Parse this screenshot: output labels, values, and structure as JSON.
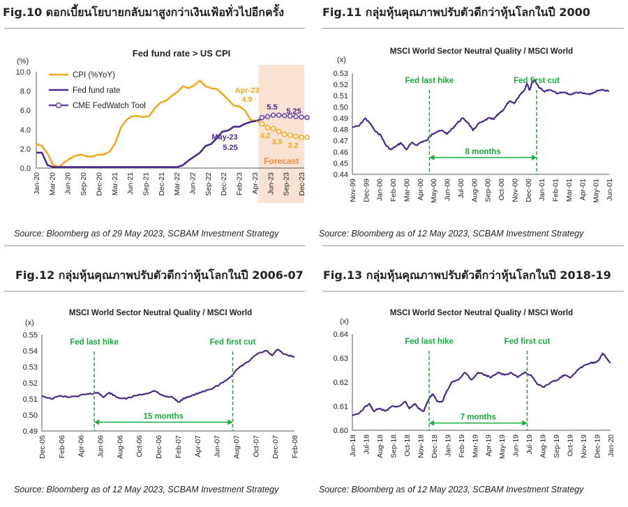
{
  "panels": [
    {
      "title": "Fig.10 ดอกเบี้ยนโยบายกลับมาสูงกว่าเงินเฟ้อทั่วไปอีกครั้ง",
      "source": "Source: Bloomberg as of 29 May 2023, SCBAM Investment Strategy"
    },
    {
      "title": "Fig.11 กลุ่มหุ้นคุณภาพปรับตัวดีกว่าหุ้นโลกในปี 2000",
      "source": "Source: Bloomberg as of 12 May 2023, SCBAM Investment Strategy"
    },
    {
      "title": "Fig.12 กลุ่มหุ้นคุณภาพปรับตัวดีกว่าหุ้นโลกในปี 2006-07",
      "source": "Source: Bloomberg as of 12 May 2023, SCBAM Investment Strategy"
    },
    {
      "title": "Fig.13 กลุ่มหุ้นคุณภาพปรับตัวดีกว่าหุ้นโลกในปี 2018-19",
      "source": "Source: Bloomberg as of 12 May 2023, SCBAM Investment Strategy"
    }
  ],
  "colors": {
    "cpi": "#F2A81D",
    "fed": "#4B2A8A",
    "fedwatch": "#6A3FA8",
    "green": "#1AAA3C",
    "forecast_bg": "#FBE3D3",
    "forecast_text": "#F08A3A",
    "grid": "#d9d9d9",
    "axis": "#555555"
  },
  "chart_data": [
    {
      "type": "line",
      "title": "Fed fund rate > US CPI",
      "ylabel": "(%)",
      "ylim": [
        0,
        10
      ],
      "yticks": [
        "0.0",
        "2.0",
        "4.0",
        "6.0",
        "8.0",
        "10.0"
      ],
      "x_start": "2020-01",
      "x_end": "2023-12",
      "xtick_labels": [
        "Jan-20",
        "Mar-20",
        "Jun-20",
        "Sep-20",
        "Dec-20",
        "Mar-21",
        "Jun-21",
        "Sep-21",
        "Dec-21",
        "Mar-22",
        "Jun-22",
        "Sep-22",
        "Dec-22",
        "Feb-23",
        "Apr-23",
        "Jun-23",
        "Sep-23",
        "Dec-23"
      ],
      "forecast_label": "Forecast",
      "forecast_from": "2023-05",
      "legend": [
        "CPI (%YoY)",
        "Fed fund rate",
        "CME FedWatch Tool"
      ],
      "series": [
        {
          "name": "CPI (%YoY)",
          "start": "2020-01",
          "values": [
            2.5,
            2.3,
            1.5,
            0.3,
            0.1,
            0.6,
            1.0,
            1.3,
            1.4,
            1.2,
            1.2,
            1.4,
            1.4,
            1.7,
            2.6,
            4.2,
            5.0,
            5.4,
            5.4,
            5.3,
            5.4,
            6.2,
            6.8,
            7.0,
            7.5,
            7.9,
            8.5,
            8.3,
            8.6,
            9.1,
            8.5,
            8.3,
            8.2,
            7.7,
            7.1,
            6.5,
            6.4,
            6.0,
            5.0,
            4.9
          ]
        },
        {
          "name": "Fed fund rate",
          "start": "2020-01",
          "values": [
            1.6,
            1.6,
            0.3,
            0.1,
            0.1,
            0.1,
            0.1,
            0.1,
            0.1,
            0.1,
            0.1,
            0.1,
            0.1,
            0.1,
            0.1,
            0.1,
            0.1,
            0.1,
            0.1,
            0.1,
            0.1,
            0.1,
            0.1,
            0.1,
            0.1,
            0.1,
            0.3,
            0.8,
            1.2,
            1.6,
            2.3,
            2.5,
            3.1,
            3.8,
            3.9,
            4.3,
            4.3,
            4.6,
            4.8,
            4.9,
            5.1
          ]
        },
        {
          "name": "CPI forecast",
          "start": "2023-04",
          "values": [
            4.9,
            4.6,
            4.2,
            4.1,
            3.8,
            3.5,
            3.4,
            3.3,
            3.2,
            3.2
          ]
        },
        {
          "name": "CME FedWatch Tool",
          "start": "2023-05",
          "values": [
            5.25,
            5.35,
            5.5,
            5.5,
            5.45,
            5.4,
            5.35,
            5.3,
            5.25
          ]
        }
      ],
      "annotations": [
        {
          "text": "Apr-23",
          "color": "cpi"
        },
        {
          "text": "4.9",
          "color": "cpi"
        },
        {
          "text": "May-23",
          "color": "fed"
        },
        {
          "text": "5.25",
          "color": "fed"
        },
        {
          "text": "5.5",
          "color": "fed"
        },
        {
          "text": "5.25",
          "color": "fed"
        },
        {
          "text": "4.2",
          "color": "cpi"
        },
        {
          "text": "3.5",
          "color": "cpi"
        },
        {
          "text": "3.2",
          "color": "cpi"
        }
      ]
    },
    {
      "type": "line",
      "title": "MSCI World Sector Neutral Quality / MSCI World",
      "ylabel": "(x)",
      "ylim": [
        0.44,
        0.53
      ],
      "yticks": [
        "0.44",
        "0.45",
        "0.46",
        "0.47",
        "0.48",
        "0.49",
        "0.50",
        "0.51",
        "0.52",
        "0.53"
      ],
      "xtick_labels": [
        "Nov-99",
        "Dec-99",
        "Jan-00",
        "Feb-00",
        "Mar-00",
        "Apr-00",
        "May-00",
        "Jun-00",
        "Jul-00",
        "Aug-00",
        "Sep-00",
        "Oct-00",
        "Nov-00",
        "Dec-00",
        "Jan-01",
        "Feb-01",
        "Mar-01",
        "Apr-01",
        "May-01",
        "Jun-01"
      ],
      "x_range": [
        0,
        20
      ],
      "path": [
        [
          0,
          0.482
        ],
        [
          0.5,
          0.483
        ],
        [
          1.0,
          0.49
        ],
        [
          1.4,
          0.485
        ],
        [
          1.8,
          0.478
        ],
        [
          2.2,
          0.475
        ],
        [
          2.6,
          0.466
        ],
        [
          3.0,
          0.462
        ],
        [
          3.4,
          0.465
        ],
        [
          3.8,
          0.468
        ],
        [
          4.2,
          0.462
        ],
        [
          4.6,
          0.468
        ],
        [
          5.0,
          0.466
        ],
        [
          5.4,
          0.469
        ],
        [
          5.8,
          0.47
        ],
        [
          6.2,
          0.476
        ],
        [
          6.6,
          0.478
        ],
        [
          7.0,
          0.479
        ],
        [
          7.4,
          0.476
        ],
        [
          7.8,
          0.481
        ],
        [
          8.2,
          0.486
        ],
        [
          8.6,
          0.49
        ],
        [
          9.0,
          0.486
        ],
        [
          9.4,
          0.479
        ],
        [
          9.8,
          0.485
        ],
        [
          10.2,
          0.487
        ],
        [
          10.6,
          0.49
        ],
        [
          11.0,
          0.489
        ],
        [
          11.4,
          0.494
        ],
        [
          11.8,
          0.498
        ],
        [
          12.2,
          0.505
        ],
        [
          12.6,
          0.503
        ],
        [
          13.0,
          0.51
        ],
        [
          13.4,
          0.515
        ],
        [
          13.6,
          0.521
        ],
        [
          13.8,
          0.515
        ],
        [
          14.0,
          0.522
        ],
        [
          14.2,
          0.524
        ],
        [
          14.5,
          0.518
        ],
        [
          14.9,
          0.514
        ],
        [
          15.4,
          0.515
        ],
        [
          16.0,
          0.512
        ],
        [
          16.5,
          0.513
        ],
        [
          17.0,
          0.511
        ],
        [
          17.5,
          0.513
        ],
        [
          18.0,
          0.512
        ],
        [
          18.5,
          0.511
        ],
        [
          19.0,
          0.514
        ],
        [
          19.5,
          0.515
        ],
        [
          20.0,
          0.514
        ]
      ],
      "vlines": [
        {
          "x": 6.0,
          "label": "Fed last hike"
        },
        {
          "x": 14.35,
          "label": "Fed first cut"
        }
      ],
      "span": {
        "from": 6.0,
        "to": 14.35,
        "label": "8 months",
        "y": 0.455
      }
    },
    {
      "type": "line",
      "title": "MSCI World Sector Neutral Quality / MSCI World",
      "ylabel": "(x)",
      "ylim": [
        0.49,
        0.55
      ],
      "yticks": [
        "0.49",
        "0.50",
        "0.51",
        "0.52",
        "0.53",
        "0.54",
        "0.55"
      ],
      "xtick_labels": [
        "Dec-05",
        "Feb-06",
        "Apr-06",
        "Jun-06",
        "Aug-06",
        "Oct-06",
        "Dec-06",
        "Feb-07",
        "Apr-07",
        "Jun-07",
        "Aug-07",
        "Oct-07",
        "Dec-07",
        "Feb-08"
      ],
      "x_range": [
        0,
        13.5
      ],
      "path": [
        [
          0,
          0.512
        ],
        [
          0.5,
          0.51
        ],
        [
          1.0,
          0.512
        ],
        [
          1.5,
          0.511
        ],
        [
          2.0,
          0.512
        ],
        [
          2.5,
          0.513
        ],
        [
          3.0,
          0.514
        ],
        [
          3.3,
          0.511
        ],
        [
          3.6,
          0.514
        ],
        [
          4.0,
          0.511
        ],
        [
          4.5,
          0.51
        ],
        [
          5.0,
          0.512
        ],
        [
          5.5,
          0.513
        ],
        [
          6.0,
          0.515
        ],
        [
          6.5,
          0.512
        ],
        [
          7.0,
          0.511
        ],
        [
          7.3,
          0.508
        ],
        [
          7.7,
          0.511
        ],
        [
          8.0,
          0.512
        ],
        [
          8.5,
          0.514
        ],
        [
          9.0,
          0.516
        ],
        [
          9.5,
          0.519
        ],
        [
          10.0,
          0.523
        ],
        [
          10.5,
          0.529
        ],
        [
          11.0,
          0.533
        ],
        [
          11.5,
          0.538
        ],
        [
          12.0,
          0.54
        ],
        [
          12.3,
          0.537
        ],
        [
          12.6,
          0.541
        ],
        [
          12.9,
          0.538
        ],
        [
          13.2,
          0.537
        ],
        [
          13.5,
          0.536
        ]
      ],
      "vlines": [
        {
          "x": 2.8,
          "label": "Fed last hike"
        },
        {
          "x": 10.2,
          "label": "Fed first cut"
        }
      ],
      "span": {
        "from": 2.8,
        "to": 10.2,
        "label": "15 months",
        "y": 0.4955
      }
    },
    {
      "type": "line",
      "title": "MSCI World Sector Neutral Quality / MSCI World",
      "ylabel": "(x)",
      "ylim": [
        0.6,
        0.64
      ],
      "yticks": [
        "0.60",
        "0.61",
        "0.62",
        "0.63",
        "0.64"
      ],
      "xtick_labels": [
        "Jun-18",
        "Jul-18",
        "Aug-18",
        "Sep-18",
        "Oct-18",
        "Nov-18",
        "Dec-18",
        "Jan-19",
        "Feb-19",
        "Mar-19",
        "Apr-19",
        "May-19",
        "Jun-19",
        "Jul-19",
        "Aug-19",
        "Sep-19",
        "Oct-19",
        "Nov-19",
        "Dec-19",
        "Jan-20"
      ],
      "x_range": [
        0,
        19.5
      ],
      "path": [
        [
          0,
          0.606
        ],
        [
          0.5,
          0.607
        ],
        [
          1.0,
          0.61
        ],
        [
          1.3,
          0.611
        ],
        [
          1.6,
          0.608
        ],
        [
          2.0,
          0.609
        ],
        [
          2.5,
          0.608
        ],
        [
          3.0,
          0.61
        ],
        [
          3.5,
          0.61
        ],
        [
          4.0,
          0.612
        ],
        [
          4.3,
          0.609
        ],
        [
          4.7,
          0.611
        ],
        [
          5.0,
          0.609
        ],
        [
          5.4,
          0.608
        ],
        [
          5.7,
          0.612
        ],
        [
          5.9,
          0.614
        ],
        [
          6.1,
          0.615
        ],
        [
          6.4,
          0.612
        ],
        [
          6.8,
          0.612
        ],
        [
          7.1,
          0.616
        ],
        [
          7.5,
          0.62
        ],
        [
          8.0,
          0.621
        ],
        [
          8.5,
          0.624
        ],
        [
          9.0,
          0.621
        ],
        [
          9.5,
          0.624
        ],
        [
          10.0,
          0.623
        ],
        [
          10.5,
          0.622
        ],
        [
          11.0,
          0.624
        ],
        [
          11.5,
          0.623
        ],
        [
          12.0,
          0.624
        ],
        [
          12.5,
          0.622
        ],
        [
          13.0,
          0.624
        ],
        [
          13.5,
          0.623
        ],
        [
          14.0,
          0.619
        ],
        [
          14.5,
          0.618
        ],
        [
          15.0,
          0.62
        ],
        [
          15.5,
          0.621
        ],
        [
          16.0,
          0.623
        ],
        [
          16.5,
          0.622
        ],
        [
          17.0,
          0.625
        ],
        [
          17.5,
          0.627
        ],
        [
          18.0,
          0.628
        ],
        [
          18.3,
          0.628
        ],
        [
          18.6,
          0.629
        ],
        [
          18.9,
          0.632
        ],
        [
          19.2,
          0.63
        ],
        [
          19.5,
          0.628
        ]
      ],
      "vlines": [
        {
          "x": 5.8,
          "label": "Fed last hike"
        },
        {
          "x": 13.2,
          "label": "Fed first cut"
        }
      ],
      "span": {
        "from": 5.8,
        "to": 13.2,
        "label": "7 months",
        "y": 0.603
      }
    }
  ]
}
